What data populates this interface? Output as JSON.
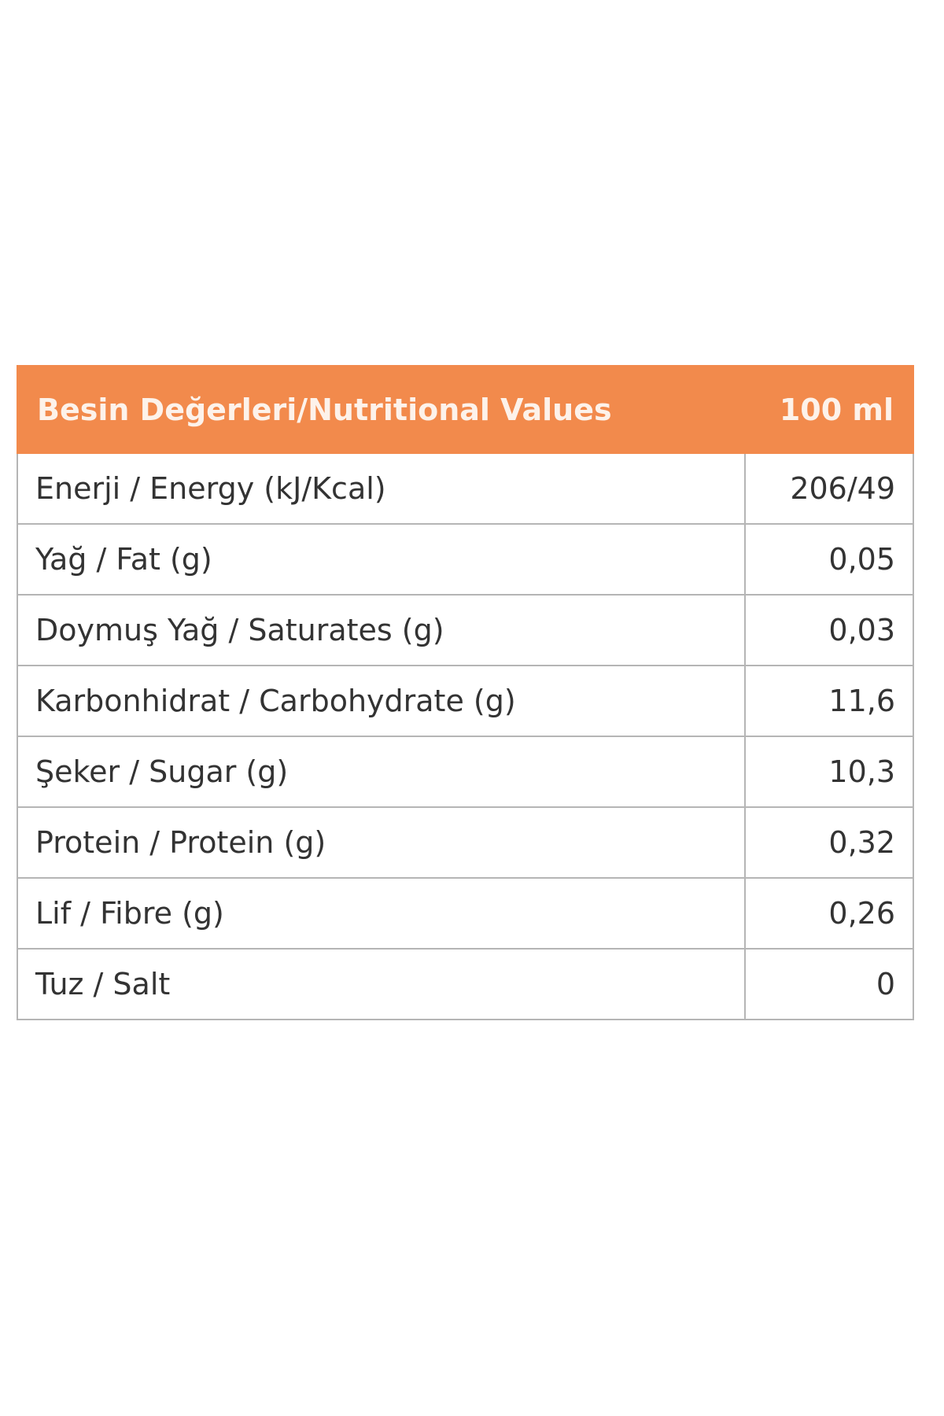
{
  "table": {
    "header": [
      "Besin Değerleri/Nutritional Values",
      "100 ml"
    ],
    "rows": [
      [
        "Enerji / Energy (kJ/Kcal)",
        "206/49"
      ],
      [
        "Yağ / Fat (g)",
        "0,05"
      ],
      [
        "Doymuş Yağ / Saturates (g)",
        "0,03"
      ],
      [
        "Karbonhidrat / Carbohydrate (g)",
        "11,6"
      ],
      [
        "Şeker / Sugar (g)",
        "10,3"
      ],
      [
        "Protein / Protein (g)",
        "0,32"
      ],
      [
        "Lif / Fibre (g)",
        "0,26"
      ],
      [
        "Tuz / Salt",
        "0"
      ]
    ]
  }
}
